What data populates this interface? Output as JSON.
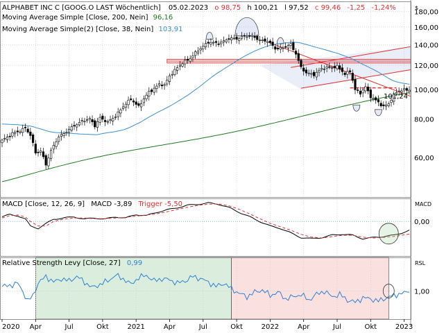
{
  "colors": {
    "up": "#ffffff",
    "down": "#000000",
    "sma200": "#1f7a1f",
    "sma38": "#3c8fd0",
    "red": "#e03030",
    "macd": "#000000",
    "trigger": "#e03030",
    "rsl": "#2f7fd2",
    "green_zone": "#dbeedd",
    "red_zone": "#fbe0e0",
    "grid": "#c8c8c8"
  },
  "chart_data": [
    {
      "type": "candlestick",
      "panel": "price",
      "title": "ALPHABET INC C [GOOG.O LAST Wöchentlich]",
      "ohlc_label": {
        "date": "05.02.2023",
        "o": "o 98,75",
        "h": "h 100,21",
        "l": "l 97,52",
        "c": "c 99,46",
        "chg": "-1,25",
        "pct": "-1,24%"
      },
      "currency": "$",
      "indicators": [
        {
          "name": "Moving Average Simple [Close, 200, Nein]",
          "value": "96,16"
        },
        {
          "name": "Moving Average Simple(2) [Close, 38, Nein]",
          "value": "103,91"
        }
      ],
      "y_ticks": [
        "180,00",
        "160,00",
        "140,00",
        "120,00",
        "100,00",
        "80,00",
        "60,00"
      ],
      "ylim": [
        45,
        190
      ],
      "log_scale": true,
      "annotation": "101,24",
      "x_ticks": [
        "2020",
        "Apr",
        "Jul",
        "Okt",
        "2021",
        "Apr",
        "Jul",
        "Okt",
        "2022",
        "Apr",
        "Jul",
        "Okt",
        "2023"
      ],
      "close_anchors": [
        [
          0,
          68
        ],
        [
          4,
          72
        ],
        [
          7,
          73
        ],
        [
          9,
          75
        ],
        [
          11,
          71
        ],
        [
          13,
          62
        ],
        [
          15,
          63
        ],
        [
          17,
          57
        ],
        [
          19,
          63
        ],
        [
          22,
          70
        ],
        [
          25,
          73
        ],
        [
          28,
          76
        ],
        [
          31,
          79
        ],
        [
          34,
          80
        ],
        [
          36,
          76
        ],
        [
          38,
          81
        ],
        [
          41,
          78
        ],
        [
          44,
          82
        ],
        [
          47,
          88
        ],
        [
          50,
          93
        ],
        [
          53,
          88
        ],
        [
          57,
          98
        ],
        [
          61,
          104
        ],
        [
          63,
          103
        ],
        [
          65,
          111
        ],
        [
          69,
          120
        ],
        [
          73,
          127
        ],
        [
          77,
          136
        ],
        [
          80,
          143
        ],
        [
          84,
          141
        ],
        [
          88,
          147
        ],
        [
          91,
          146
        ],
        [
          94,
          150
        ],
        [
          97,
          149
        ],
        [
          100,
          145
        ],
        [
          103,
          144
        ],
        [
          106,
          136
        ],
        [
          109,
          137
        ],
        [
          112,
          140
        ],
        [
          114,
          131
        ],
        [
          116,
          118
        ],
        [
          118,
          113
        ],
        [
          121,
          112
        ],
        [
          124,
          117
        ],
        [
          127,
          118
        ],
        [
          130,
          119
        ],
        [
          133,
          112
        ],
        [
          135,
          115
        ],
        [
          137,
          100
        ],
        [
          139,
          97
        ],
        [
          141,
          102
        ],
        [
          143,
          95
        ],
        [
          145,
          92
        ],
        [
          147,
          89
        ],
        [
          148,
          88
        ],
        [
          150,
          90
        ],
        [
          152,
          96
        ],
        [
          154,
          99
        ],
        [
          156,
          100
        ],
        [
          158,
          99.46
        ]
      ]
    },
    {
      "type": "line",
      "panel": "macd",
      "title": "MACD [Close, 12, 26, 9]",
      "legend": {
        "macd": "MACD -3,89",
        "trigger": "Trigger -5,50"
      },
      "panel_label": "MACD",
      "y_ticks": [
        "0,00"
      ],
      "ylim": [
        -15,
        10
      ],
      "macd_anchors": [
        [
          0,
          2
        ],
        [
          3,
          3
        ],
        [
          6,
          2.5
        ],
        [
          9,
          1
        ],
        [
          11,
          -2
        ],
        [
          14,
          -3
        ],
        [
          17,
          -1
        ],
        [
          20,
          1
        ],
        [
          24,
          1.5
        ],
        [
          28,
          2
        ],
        [
          32,
          1
        ],
        [
          36,
          1.5
        ],
        [
          40,
          1
        ],
        [
          44,
          2
        ],
        [
          48,
          1.5
        ],
        [
          52,
          3
        ],
        [
          56,
          2.5
        ],
        [
          60,
          4
        ],
        [
          64,
          5
        ],
        [
          68,
          6
        ],
        [
          72,
          7
        ],
        [
          76,
          7.5
        ],
        [
          80,
          8
        ],
        [
          84,
          7.5
        ],
        [
          88,
          6
        ],
        [
          92,
          4
        ],
        [
          96,
          2
        ],
        [
          100,
          0
        ],
        [
          104,
          -2
        ],
        [
          108,
          -3
        ],
        [
          112,
          -5
        ],
        [
          116,
          -7
        ],
        [
          120,
          -7.5
        ],
        [
          124,
          -7
        ],
        [
          128,
          -6
        ],
        [
          132,
          -5.5
        ],
        [
          136,
          -6
        ],
        [
          140,
          -7.5
        ],
        [
          144,
          -7
        ],
        [
          148,
          -6.5
        ],
        [
          152,
          -6
        ],
        [
          155,
          -5
        ],
        [
          158,
          -3.89
        ]
      ],
      "trigger_anchors": [
        [
          0,
          1.5
        ],
        [
          3,
          2.5
        ],
        [
          6,
          2.8
        ],
        [
          9,
          2
        ],
        [
          11,
          0
        ],
        [
          14,
          -2
        ],
        [
          17,
          -2
        ],
        [
          20,
          0
        ],
        [
          24,
          1
        ],
        [
          28,
          1.5
        ],
        [
          32,
          1.5
        ],
        [
          36,
          1.2
        ],
        [
          40,
          1.2
        ],
        [
          44,
          1.5
        ],
        [
          48,
          1.8
        ],
        [
          52,
          2.3
        ],
        [
          56,
          2.8
        ],
        [
          60,
          3.3
        ],
        [
          64,
          4.2
        ],
        [
          68,
          5.2
        ],
        [
          72,
          6.2
        ],
        [
          76,
          7
        ],
        [
          80,
          7.5
        ],
        [
          84,
          7.6
        ],
        [
          88,
          6.8
        ],
        [
          92,
          5.3
        ],
        [
          96,
          3.3
        ],
        [
          100,
          1.2
        ],
        [
          104,
          -0.8
        ],
        [
          108,
          -2.3
        ],
        [
          112,
          -3.8
        ],
        [
          116,
          -5.6
        ],
        [
          120,
          -6.8
        ],
        [
          124,
          -7.2
        ],
        [
          128,
          -6.6
        ],
        [
          132,
          -6
        ],
        [
          136,
          -6
        ],
        [
          140,
          -6.8
        ],
        [
          144,
          -7.2
        ],
        [
          148,
          -6.9
        ],
        [
          152,
          -6.5
        ],
        [
          155,
          -6
        ],
        [
          158,
          -5.5
        ]
      ]
    },
    {
      "type": "line",
      "panel": "rsl",
      "title": "Relative Strength Levy [Close, 27]",
      "value": "0,99",
      "panel_label": "RSL",
      "y_ticks": [
        "1,00"
      ],
      "ylim": [
        0.75,
        1.3
      ],
      "zones": [
        {
          "name": "green",
          "start": 13,
          "end": 89
        },
        {
          "name": "red",
          "end": 150
        }
      ],
      "rsl_anchors": [
        [
          0,
          1.04
        ],
        [
          3,
          1.05
        ],
        [
          6,
          1.07
        ],
        [
          8,
          1.0
        ],
        [
          10,
          0.91
        ],
        [
          12,
          0.96
        ],
        [
          14,
          1.07
        ],
        [
          17,
          1.13
        ],
        [
          20,
          1.08
        ],
        [
          23,
          1.11
        ],
        [
          26,
          1.09
        ],
        [
          29,
          1.13
        ],
        [
          32,
          1.08
        ],
        [
          35,
          1.03
        ],
        [
          38,
          1.06
        ],
        [
          41,
          1.09
        ],
        [
          44,
          1.14
        ],
        [
          47,
          1.11
        ],
        [
          50,
          1.06
        ],
        [
          53,
          1.12
        ],
        [
          56,
          1.14
        ],
        [
          59,
          1.09
        ],
        [
          62,
          1.11
        ],
        [
          65,
          1.1
        ],
        [
          68,
          1.07
        ],
        [
          71,
          1.09
        ],
        [
          74,
          1.13
        ],
        [
          77,
          1.11
        ],
        [
          80,
          1.08
        ],
        [
          83,
          1.04
        ],
        [
          86,
          1.07
        ],
        [
          89,
          1.02
        ],
        [
          92,
          0.98
        ],
        [
          95,
          0.95
        ],
        [
          98,
          0.99
        ],
        [
          101,
          1.01
        ],
        [
          104,
          0.96
        ],
        [
          107,
          0.99
        ],
        [
          110,
          0.93
        ],
        [
          113,
          0.95
        ],
        [
          116,
          0.97
        ],
        [
          119,
          0.92
        ],
        [
          122,
          0.97
        ],
        [
          125,
          1.0
        ],
        [
          128,
          0.95
        ],
        [
          131,
          0.97
        ],
        [
          134,
          0.92
        ],
        [
          137,
          0.9
        ],
        [
          140,
          0.94
        ],
        [
          143,
          0.93
        ],
        [
          146,
          0.91
        ],
        [
          149,
          0.94
        ],
        [
          152,
          0.96
        ],
        [
          155,
          0.98
        ],
        [
          158,
          0.99
        ]
      ]
    }
  ]
}
